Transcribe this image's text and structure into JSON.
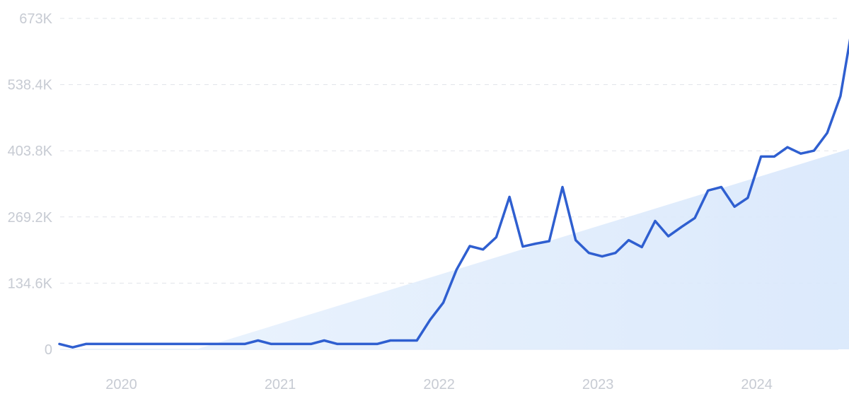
{
  "chart_data": {
    "type": "line",
    "colors": {
      "line": "#2f5fd0",
      "trend_fill": "#dbe9fc",
      "grid": "#e1e4ea",
      "label": "#c7cbd3"
    },
    "ylim": [
      0,
      673
    ],
    "yticks": [
      {
        "value": 0,
        "label": "0"
      },
      {
        "value": 134.6,
        "label": "134.6K"
      },
      {
        "value": 269.2,
        "label": "269.2K"
      },
      {
        "value": 403.8,
        "label": "403.8K"
      },
      {
        "value": 538.4,
        "label": "538.4K"
      },
      {
        "value": 673,
        "label": "673K"
      }
    ],
    "xlim": [
      "2019-08",
      "2024-07"
    ],
    "xticks": [
      {
        "x": "2020-01",
        "label": "2020"
      },
      {
        "x": "2021-01",
        "label": "2021"
      },
      {
        "x": "2022-01",
        "label": "2022"
      },
      {
        "x": "2023-01",
        "label": "2023"
      },
      {
        "x": "2024-01",
        "label": "2024"
      }
    ],
    "grid": "horizontal dashed",
    "series": [
      {
        "points": [
          [
            "2019-08",
            11
          ],
          [
            "2019-09",
            4
          ],
          [
            "2019-10",
            11
          ],
          [
            "2019-11",
            11
          ],
          [
            "2019-12",
            11
          ],
          [
            "2020-01",
            11
          ],
          [
            "2020-02",
            11
          ],
          [
            "2020-03",
            11
          ],
          [
            "2020-04",
            11
          ],
          [
            "2020-05",
            11
          ],
          [
            "2020-06",
            11
          ],
          [
            "2020-07",
            11
          ],
          [
            "2020-08",
            11
          ],
          [
            "2020-09",
            11
          ],
          [
            "2020-10",
            11
          ],
          [
            "2020-11",
            18
          ],
          [
            "2020-12",
            11
          ],
          [
            "2021-01",
            11
          ],
          [
            "2021-02",
            11
          ],
          [
            "2021-03",
            11
          ],
          [
            "2021-04",
            18
          ],
          [
            "2021-05",
            11
          ],
          [
            "2021-06",
            11
          ],
          [
            "2021-07",
            11
          ],
          [
            "2021-08",
            11
          ],
          [
            "2021-09",
            18
          ],
          [
            "2021-10",
            18
          ],
          [
            "2021-11",
            18
          ],
          [
            "2021-12",
            60
          ],
          [
            "2022-01",
            95
          ],
          [
            "2022-02",
            162
          ],
          [
            "2022-03",
            210
          ],
          [
            "2022-04",
            203
          ],
          [
            "2022-05",
            228
          ],
          [
            "2022-06",
            310
          ],
          [
            "2022-07",
            209
          ],
          [
            "2022-08",
            215
          ],
          [
            "2022-09",
            220
          ],
          [
            "2022-10",
            330
          ],
          [
            "2022-11",
            222
          ],
          [
            "2022-12",
            196
          ],
          [
            "2023-01",
            189
          ],
          [
            "2023-02",
            196
          ],
          [
            "2023-03",
            222
          ],
          [
            "2023-04",
            208
          ],
          [
            "2023-05",
            261
          ],
          [
            "2023-06",
            230
          ],
          [
            "2023-07",
            249
          ],
          [
            "2023-08",
            267
          ],
          [
            "2023-09",
            323
          ],
          [
            "2023-10",
            330
          ],
          [
            "2023-11",
            290
          ],
          [
            "2023-12",
            308
          ],
          [
            "2024-01",
            392
          ],
          [
            "2024-02",
            392
          ],
          [
            "2024-03",
            411
          ],
          [
            "2024-04",
            398
          ],
          [
            "2024-05",
            404
          ],
          [
            "2024-06",
            440
          ],
          [
            "2024-07",
            515
          ],
          [
            "2024-08",
            673
          ]
        ]
      }
    ],
    "trend": {
      "start": [
        "2020-09",
        0
      ],
      "end": [
        "2024-08",
        410
      ]
    }
  }
}
